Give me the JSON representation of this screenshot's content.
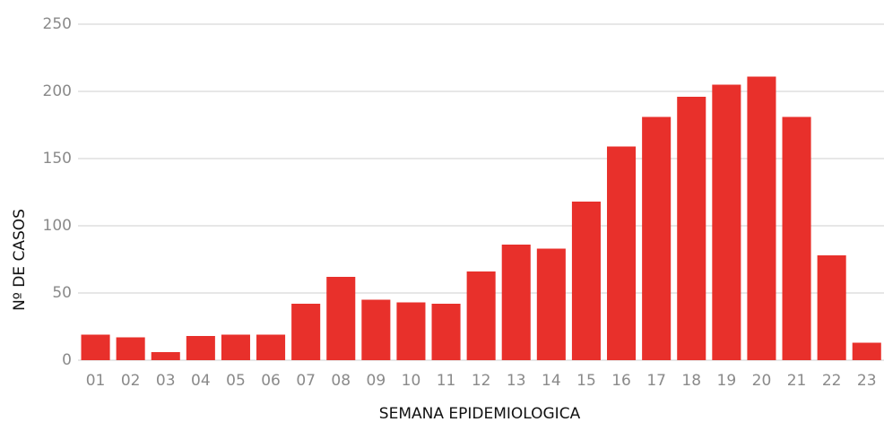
{
  "chart_data": {
    "type": "bar",
    "x_label": "SEMANA EPIDEMIOLOGICA",
    "y_label": "Nº DE CASOS",
    "categories": [
      "01",
      "02",
      "03",
      "04",
      "05",
      "06",
      "07",
      "08",
      "09",
      "10",
      "11",
      "12",
      "13",
      "14",
      "15",
      "16",
      "17",
      "18",
      "19",
      "20",
      "21",
      "22",
      "23"
    ],
    "values": [
      19,
      17,
      6,
      18,
      19,
      19,
      42,
      62,
      45,
      43,
      42,
      66,
      86,
      83,
      118,
      159,
      181,
      196,
      205,
      211,
      181,
      78,
      13
    ],
    "color": "#e8302b",
    "ylim": [
      0,
      250
    ],
    "yticks": [
      0,
      50,
      100,
      150,
      200,
      250
    ],
    "grid": true
  }
}
